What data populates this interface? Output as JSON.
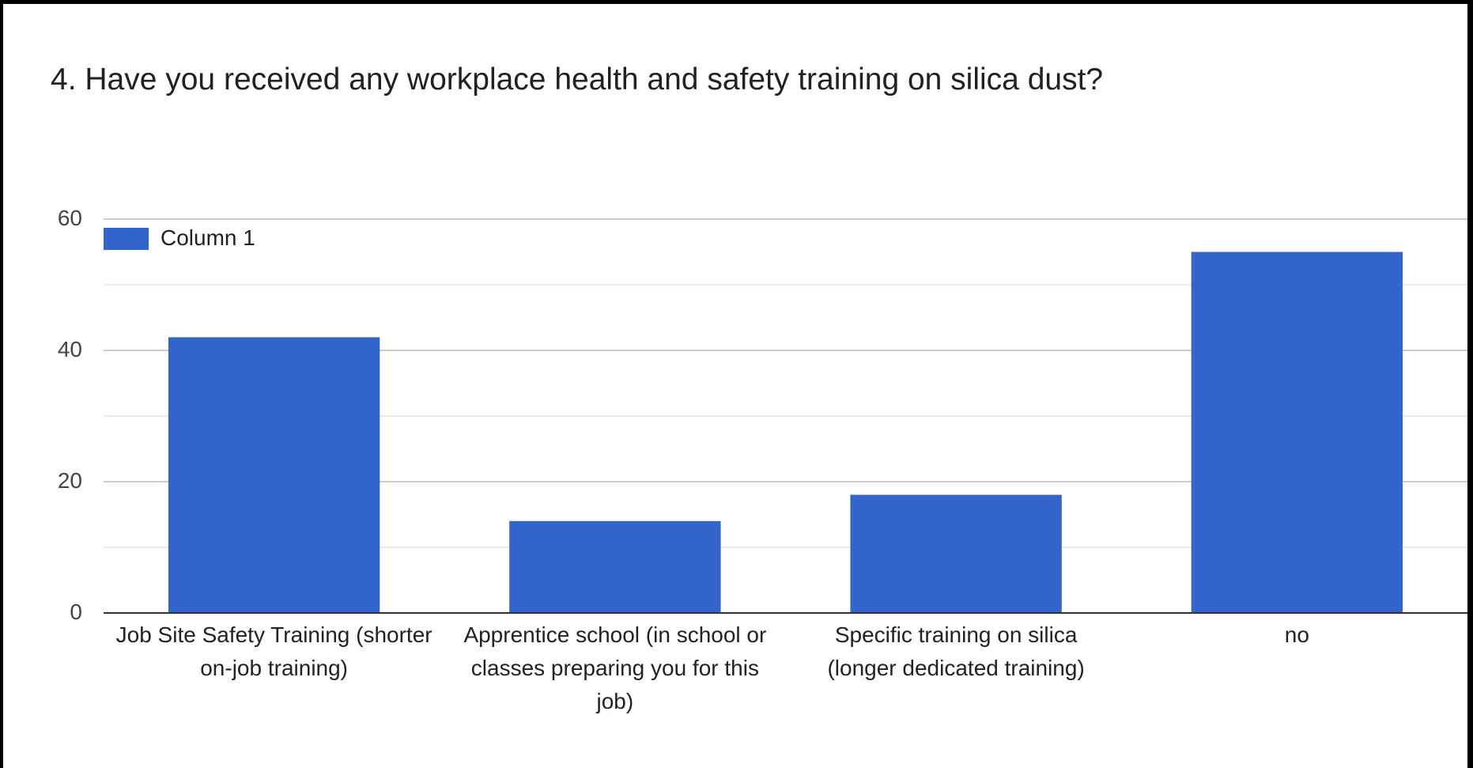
{
  "chart_data": {
    "type": "bar",
    "title": "4. Have you received any workplace health and safety training on silica dust?",
    "categories": [
      "Job Site Safety Training (shorter on-job training)",
      "Apprentice school (in school or classes preparing you for this job)",
      "Specific training on silica (longer dedicated training)",
      "no"
    ],
    "series": [
      {
        "name": "Column 1",
        "color": "#3366cc",
        "values": [
          42,
          14,
          18,
          55
        ]
      }
    ],
    "ylim": [
      0,
      60
    ],
    "yticks": [
      0,
      20,
      40,
      60
    ],
    "minor_yticks": [
      10,
      30,
      50
    ],
    "grid": true,
    "legend": "top-left"
  }
}
